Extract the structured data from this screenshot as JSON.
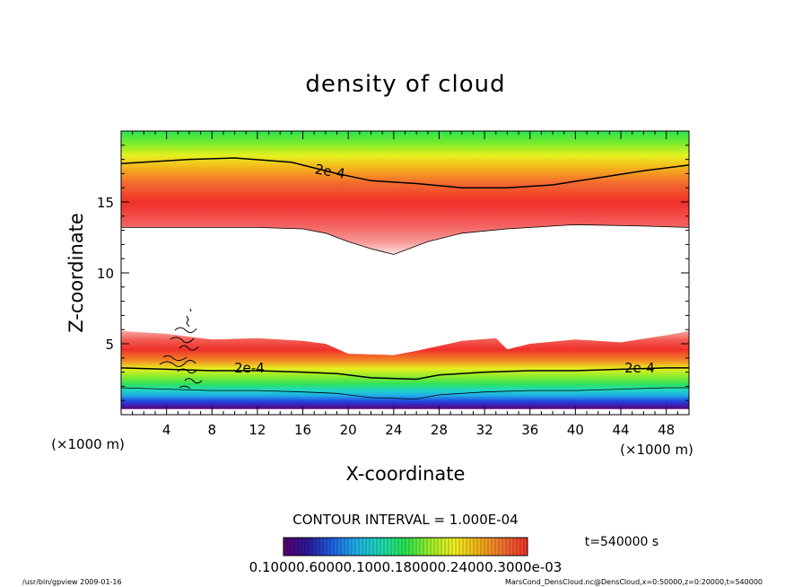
{
  "chart_data": {
    "type": "heatmap",
    "title": "density of cloud",
    "xlabel": "X-coordinate",
    "ylabel": "Z-coordinate",
    "x_unit": "(×1000 m)",
    "y_unit": "(×1000 m)",
    "xlim": [
      0,
      50
    ],
    "ylim": [
      0,
      20
    ],
    "x_ticks": [
      4,
      8,
      12,
      16,
      20,
      24,
      28,
      32,
      36,
      40,
      44,
      48
    ],
    "y_ticks": [
      5,
      10,
      15
    ],
    "contour_label": "2e-4",
    "contour_interval": "CONTOUR INTERVAL = 1.000E-04",
    "time_label": "t=540000 s",
    "colorbar_text": "0.10000.60000.1000.180000.24000.3000e-03",
    "colorbar_colors": [
      "#5a006e",
      "#2a1a9a",
      "#1f5fe0",
      "#1fb0e6",
      "#1fd8b0",
      "#28e34f",
      "#9aee2b",
      "#f0f020",
      "#f0b018",
      "#f07030",
      "#f03028"
    ],
    "upper_layer": {
      "top": [
        [
          0,
          17.9
        ],
        [
          6,
          18.1
        ],
        [
          10,
          18.2
        ],
        [
          16,
          17.8
        ],
        [
          20,
          16.9
        ],
        [
          24,
          16.6
        ],
        [
          28,
          16.2
        ],
        [
          32,
          16.0
        ],
        [
          36,
          16.1
        ],
        [
          40,
          16.4
        ],
        [
          44,
          16.9
        ],
        [
          48,
          17.5
        ],
        [
          50,
          17.9
        ]
      ],
      "peak": [
        [
          0,
          15.4
        ],
        [
          6,
          15.3
        ],
        [
          10,
          15.1
        ],
        [
          16,
          14.9
        ],
        [
          20,
          13.9
        ],
        [
          22,
          13.3
        ],
        [
          24,
          12.9
        ],
        [
          26,
          13.1
        ],
        [
          30,
          13.6
        ],
        [
          34,
          14.2
        ],
        [
          40,
          14.8
        ],
        [
          46,
          15.2
        ],
        [
          50,
          15.4
        ]
      ],
      "bottom": [
        [
          0,
          13.2
        ],
        [
          8,
          13.2
        ],
        [
          12,
          13.2
        ],
        [
          16,
          13.1
        ],
        [
          18,
          12.8
        ],
        [
          20,
          12.2
        ],
        [
          22,
          11.7
        ],
        [
          23,
          11.5
        ],
        [
          24,
          11.3
        ],
        [
          25,
          11.6
        ],
        [
          27,
          12.2
        ],
        [
          30,
          12.8
        ],
        [
          34,
          13.1
        ],
        [
          40,
          13.4
        ],
        [
          46,
          13.3
        ],
        [
          50,
          13.2
        ]
      ],
      "contour": [
        [
          0,
          17.7
        ],
        [
          6,
          18.0
        ],
        [
          10,
          18.1
        ],
        [
          15,
          17.8
        ],
        [
          19,
          17.0
        ],
        [
          22,
          16.5
        ],
        [
          26,
          16.3
        ],
        [
          30,
          16.0
        ],
        [
          34,
          16.0
        ],
        [
          38,
          16.2
        ],
        [
          42,
          16.7
        ],
        [
          46,
          17.2
        ],
        [
          50,
          17.6
        ]
      ]
    },
    "lower_layer": {
      "top": [
        [
          0,
          5.9
        ],
        [
          4,
          5.7
        ],
        [
          8,
          5.3
        ],
        [
          12,
          5.4
        ],
        [
          16,
          5.2
        ],
        [
          18,
          5.0
        ],
        [
          20,
          4.3
        ],
        [
          24,
          4.2
        ],
        [
          26,
          4.5
        ],
        [
          30,
          5.2
        ],
        [
          33,
          5.4
        ],
        [
          34,
          4.6
        ],
        [
          36,
          5.0
        ],
        [
          40,
          5.3
        ],
        [
          44,
          5.1
        ],
        [
          48,
          5.6
        ],
        [
          50,
          5.9
        ]
      ],
      "peak": [
        [
          0,
          4.7
        ],
        [
          8,
          4.4
        ],
        [
          16,
          4.3
        ],
        [
          20,
          3.7
        ],
        [
          24,
          3.6
        ],
        [
          28,
          3.9
        ],
        [
          32,
          4.2
        ],
        [
          34,
          3.7
        ],
        [
          38,
          4.0
        ],
        [
          44,
          4.1
        ],
        [
          50,
          4.5
        ]
      ],
      "contour": [
        [
          0,
          3.3
        ],
        [
          4,
          3.2
        ],
        [
          8,
          3.1
        ],
        [
          12,
          3.1
        ],
        [
          16,
          3.0
        ],
        [
          19,
          2.9
        ],
        [
          22,
          2.6
        ],
        [
          26,
          2.5
        ],
        [
          28,
          2.8
        ],
        [
          32,
          3.0
        ],
        [
          36,
          3.1
        ],
        [
          40,
          3.1
        ],
        [
          44,
          3.2
        ],
        [
          48,
          3.3
        ],
        [
          50,
          3.3
        ]
      ],
      "bottom": [
        [
          0,
          0.4
        ],
        [
          50,
          0.4
        ]
      ]
    }
  },
  "footer": {
    "left": "/usr/bin/gpview   2009-01-16",
    "right": "MarsCond_DensCloud.nc@DensCloud,x=0:50000,z=0:20000,t=540000"
  }
}
